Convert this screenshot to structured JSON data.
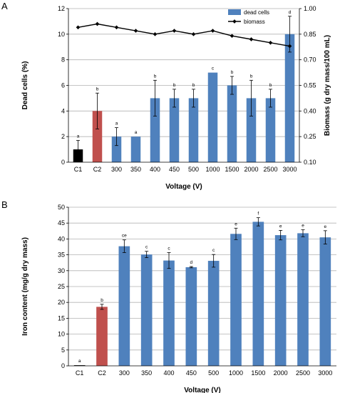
{
  "figure": {
    "panel_a_letter": "A",
    "panel_b_letter": "B"
  },
  "colors": {
    "blue": "#4f81bd",
    "red": "#c0504d",
    "black": "#000000",
    "line": "#000000",
    "grid": "#b3b3b3"
  },
  "chart_data": [
    {
      "panel": "A",
      "type": "bar",
      "categories": [
        "C1",
        "C2",
        "300",
        "350",
        "400",
        "450",
        "500",
        "1000",
        "1500",
        "2000",
        "2500",
        "3000"
      ],
      "xlabel": "Voltage (V)",
      "ylabel": "Dead cells (%)",
      "y2label": "Biomass (g dry mass/100 mL)",
      "ylim": [
        0,
        12
      ],
      "yticks": [
        0,
        2,
        4,
        6,
        8,
        10,
        12
      ],
      "y2lim": [
        0.1,
        1.0
      ],
      "y2ticks": [
        "0.10",
        "0.25",
        "0.40",
        "0.55",
        "0.70",
        "0.85",
        "1.00"
      ],
      "grid": true,
      "legend_position": "top-right",
      "legend": [
        {
          "label": "dead cells",
          "marker": "bar"
        },
        {
          "label": "biomass",
          "marker": "line"
        }
      ],
      "series": [
        {
          "name": "dead cells",
          "kind": "bar",
          "axis": "left",
          "values": [
            1,
            4,
            2,
            2,
            5,
            5,
            5,
            7,
            6,
            5,
            5,
            10
          ],
          "errors": [
            0.7,
            1.4,
            0.7,
            0,
            1.4,
            0.7,
            0.7,
            0,
            0.7,
            1.4,
            0.7,
            1.4
          ],
          "bar_colors": [
            "black",
            "red",
            "blue",
            "blue",
            "blue",
            "blue",
            "blue",
            "blue",
            "blue",
            "blue",
            "blue",
            "blue"
          ],
          "significance": [
            "a",
            "b",
            "a",
            "a",
            "b",
            "b",
            "b",
            "c",
            "b",
            "b",
            "b",
            "d"
          ]
        },
        {
          "name": "biomass",
          "kind": "line",
          "axis": "right",
          "values": [
            0.89,
            0.91,
            0.89,
            0.87,
            0.85,
            0.87,
            0.85,
            0.87,
            0.84,
            0.82,
            0.8,
            0.78
          ]
        }
      ]
    },
    {
      "panel": "B",
      "type": "bar",
      "categories": [
        "C1",
        "C2",
        "300",
        "350",
        "400",
        "450",
        "500",
        "1000",
        "1500",
        "2000",
        "2500",
        "3000"
      ],
      "xlabel": "Voltage (V)",
      "ylabel": "Iron content (mg/g dry mass)",
      "ylim": [
        0,
        50
      ],
      "yticks": [
        0,
        5,
        10,
        15,
        20,
        25,
        30,
        35,
        40,
        45,
        50
      ],
      "grid": true,
      "series": [
        {
          "kind": "bar",
          "values": [
            0.2,
            18.6,
            37.7,
            35.1,
            33.2,
            31.1,
            33.1,
            41.6,
            45.4,
            41.2,
            41.8,
            40.5
          ],
          "errors": [
            0,
            0.8,
            2.0,
            1.0,
            2.5,
            0.2,
            2.0,
            1.8,
            1.3,
            1.5,
            1.1,
            2.1
          ],
          "bar_colors": [
            "black",
            "red",
            "blue",
            "blue",
            "blue",
            "blue",
            "blue",
            "blue",
            "blue",
            "blue",
            "blue",
            "blue"
          ],
          "significance": [
            "a",
            "b",
            "ce",
            "c",
            "c",
            "d",
            "c",
            "e",
            "f",
            "e",
            "e",
            "e"
          ]
        }
      ]
    }
  ]
}
